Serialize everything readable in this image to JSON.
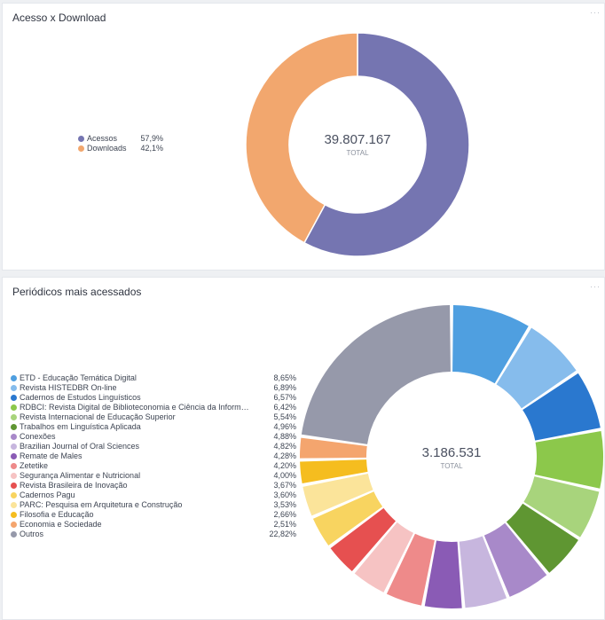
{
  "panels": [
    {
      "title": "Acesso x Download",
      "menu": "···",
      "total": "39.807.167",
      "total_label": "TOTAL"
    },
    {
      "title": "Periódicos mais acessados",
      "menu": "···",
      "total": "3.186.531",
      "total_label": "TOTAL"
    }
  ],
  "chart_data": [
    {
      "type": "pie",
      "variant": "donut",
      "title": "Acesso x Download",
      "legend_position": "left",
      "slices": [
        {
          "label": "Acessos",
          "value_label": "57,9%",
          "percent": 57.9,
          "color": "#7575b1"
        },
        {
          "label": "Downloads",
          "value_label": "42,1%",
          "percent": 42.1,
          "color": "#f2a76e"
        }
      ]
    },
    {
      "type": "pie",
      "variant": "donut",
      "title": "Periódicos mais acessados",
      "legend_position": "left",
      "slices": [
        {
          "label": "ETD - Educação Temática Digital",
          "value_label": "8,65%",
          "percent": 8.65,
          "color": "#4f9fe0"
        },
        {
          "label": "Revista HISTEDBR On-line",
          "value_label": "6,89%",
          "percent": 6.89,
          "color": "#86bcec"
        },
        {
          "label": "Cadernos de Estudos Linguísticos",
          "value_label": "6,57%",
          "percent": 6.57,
          "color": "#2a78cf"
        },
        {
          "label": "RDBCI: Revista Digital de Biblioteconomia e Ciência da Informação",
          "value_label": "6,42%",
          "percent": 6.42,
          "color": "#8cc84b"
        },
        {
          "label": "Revista Internacional de Educação Superior",
          "value_label": "5,54%",
          "percent": 5.54,
          "color": "#a8d47c"
        },
        {
          "label": "Trabalhos em Linguística Aplicada",
          "value_label": "4,96%",
          "percent": 4.96,
          "color": "#5f9632"
        },
        {
          "label": "Conexões",
          "value_label": "4,88%",
          "percent": 4.88,
          "color": "#a889c9"
        },
        {
          "label": "Brazilian Journal of Oral Sciences",
          "value_label": "4,82%",
          "percent": 4.82,
          "color": "#c7b6de"
        },
        {
          "label": "Remate de Males",
          "value_label": "4,28%",
          "percent": 4.28,
          "color": "#8a5bb5"
        },
        {
          "label": "Zetetike",
          "value_label": "4,20%",
          "percent": 4.2,
          "color": "#ee8a8a"
        },
        {
          "label": "Segurança Alimentar e Nutricional",
          "value_label": "4,00%",
          "percent": 4.0,
          "color": "#f6c3c3"
        },
        {
          "label": "Revista Brasileira de Inovação",
          "value_label": "3,67%",
          "percent": 3.67,
          "color": "#e65050"
        },
        {
          "label": "Cadernos Pagu",
          "value_label": "3,60%",
          "percent": 3.6,
          "color": "#f8d460"
        },
        {
          "label": "PARC: Pesquisa em Arquitetura e Construção",
          "value_label": "3,53%",
          "percent": 3.53,
          "color": "#fbe49a"
        },
        {
          "label": "Filosofia e Educação",
          "value_label": "2,66%",
          "percent": 2.66,
          "color": "#f5bd1f"
        },
        {
          "label": "Economia e Sociedade",
          "value_label": "2,51%",
          "percent": 2.51,
          "color": "#f4a56e"
        },
        {
          "label": "Outros",
          "value_label": "22,82%",
          "percent": 22.82,
          "color": "#9699aa"
        }
      ]
    }
  ]
}
